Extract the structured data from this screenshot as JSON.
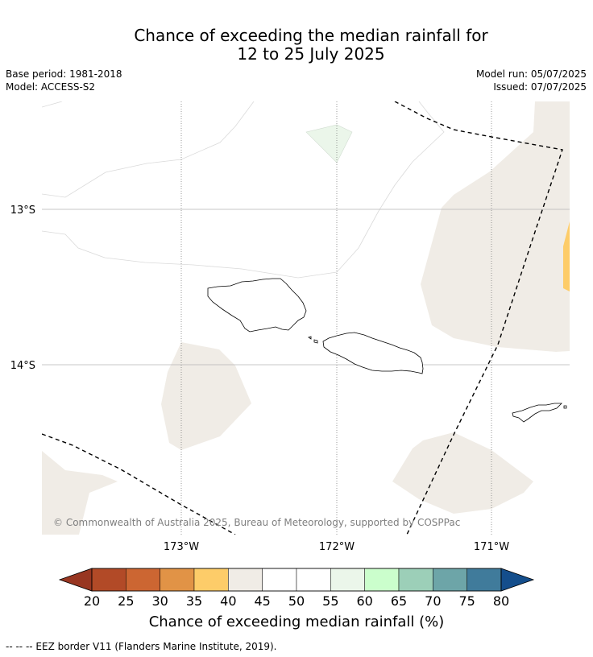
{
  "title_line1": "Chance of exceeding the median rainfall for",
  "title_line2": "12 to 25 July 2025",
  "info_left": [
    "Base period: 1981-2018",
    "Model: ACCESS-S2"
  ],
  "info_right": [
    "Model run: 05/07/2025",
    "Issued: 07/07/2025"
  ],
  "map": {
    "lat_labels": [
      "13°S",
      "14°S"
    ],
    "lon_labels": [
      "173°W",
      "172°W",
      "171°W"
    ],
    "copyright": "© Commonwealth of Australia 2025, Bureau of Meteorology, supported by COSPPac",
    "colors": {
      "near_median": "#f0ece6",
      "above_light": "#ebf6ea",
      "below_35_40": "#fdcc69"
    }
  },
  "colorbar": {
    "ticks": [
      "20",
      "25",
      "30",
      "35",
      "40",
      "45",
      "50",
      "55",
      "60",
      "65",
      "70",
      "75",
      "80"
    ],
    "colors": [
      "#b24a27",
      "#cc6632",
      "#e19346",
      "#fdcc69",
      "#f0ece6",
      "#ffffff",
      "#ffffff",
      "#ebf6ea",
      "#cbfecc",
      "#9ccfb8",
      "#6da5a8",
      "#407b9b"
    ],
    "extend_low_color": "#983621",
    "extend_high_color": "#144e8c",
    "label": "Chance of exceeding median rainfall (%)"
  },
  "footnote": "--  --  -- EEZ border V11 (Flanders Marine Institute, 2019)."
}
